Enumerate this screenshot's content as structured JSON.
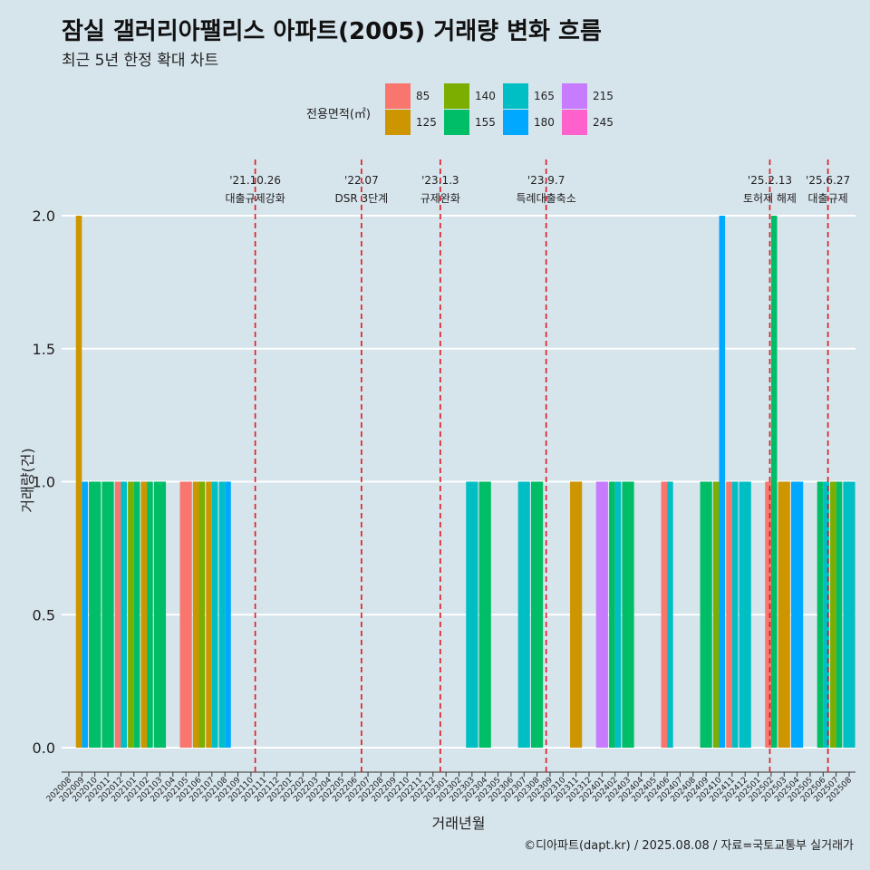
{
  "chart_data": {
    "type": "bar",
    "title": "잠실 갤러리아팰리스 아파트(2005) 거래량 변화 흐름",
    "subtitle": "최근 5년 한정 확대 차트",
    "xlabel": "거래년월",
    "ylabel": "거래량(건)",
    "ylim": [
      0,
      2
    ],
    "yticks": [
      "0.0",
      "0.5",
      "1.0",
      "1.5",
      "2.0"
    ],
    "caption": "©디아파트(dapt.kr) / 2025.08.08 / 자료=국토교통부 실거래가",
    "legend": {
      "title": "전용면적(㎡)",
      "placement": "top",
      "items": [
        {
          "label": "85",
          "color": "#f8766d"
        },
        {
          "label": "125",
          "color": "#cd9600"
        },
        {
          "label": "140",
          "color": "#7cae00"
        },
        {
          "label": "155",
          "color": "#00be67"
        },
        {
          "label": "165",
          "color": "#00bfc4"
        },
        {
          "label": "180",
          "color": "#00a9ff"
        },
        {
          "label": "215",
          "color": "#c77cff"
        },
        {
          "label": "245",
          "color": "#ff61cc"
        }
      ]
    },
    "categories": [
      "202008",
      "202009",
      "202010",
      "202011",
      "202012",
      "202101",
      "202102",
      "202103",
      "202104",
      "202105",
      "202106",
      "202107",
      "202108",
      "202109",
      "202110",
      "202111",
      "202112",
      "202201",
      "202202",
      "202203",
      "202204",
      "202205",
      "202206",
      "202207",
      "202208",
      "202209",
      "202210",
      "202211",
      "202212",
      "202301",
      "202302",
      "202303",
      "202304",
      "202305",
      "202306",
      "202307",
      "202308",
      "202309",
      "202310",
      "202311",
      "202312",
      "202401",
      "202402",
      "202403",
      "202404",
      "202405",
      "202406",
      "202407",
      "202408",
      "202409",
      "202410",
      "202411",
      "202412",
      "202501",
      "202502",
      "202503",
      "202504",
      "202505",
      "202506",
      "202507",
      "202508"
    ],
    "series": [
      {
        "name": "85",
        "values": {
          "202012": 1,
          "202105": 1,
          "202406": 1,
          "202411": 1,
          "202502": 1
        }
      },
      {
        "name": "125",
        "values": {
          "202009": 2,
          "202102": 1,
          "202106": 1,
          "202107": 1,
          "202311": 1,
          "202503": 1
        }
      },
      {
        "name": "140",
        "values": {
          "202101": 1,
          "202106": 1,
          "202410": 1,
          "202507": 1
        }
      },
      {
        "name": "155",
        "values": {
          "202010": 1,
          "202011": 1,
          "202101": 1,
          "202102": 1,
          "202103": 1,
          "202304": 1,
          "202308": 1,
          "202402": 1,
          "202403": 1,
          "202409": 1,
          "202502": 2,
          "202506": 1,
          "202507": 1
        }
      },
      {
        "name": "165",
        "values": {
          "202012": 1,
          "202107": 1,
          "202108": 1,
          "202303": 1,
          "202307": 1,
          "202402": 1,
          "202406": 1,
          "202411": 1,
          "202412": 1,
          "202506": 1,
          "202508": 1
        }
      },
      {
        "name": "180",
        "values": {
          "202009": 1,
          "202108": 1,
          "202410": 2,
          "202504": 1
        }
      },
      {
        "name": "215",
        "values": {
          "202401": 1
        }
      },
      {
        "name": "245",
        "values": {}
      }
    ],
    "annotations": [
      {
        "date": "'21.10.26",
        "text": "대출규제강화",
        "month": "202110",
        "offset": 0.83
      },
      {
        "date": "'22.07",
        "text": "DSR 3단계",
        "month": "202207",
        "offset": 0.0
      },
      {
        "date": "'23.1.3",
        "text": "규제완화",
        "month": "202301",
        "offset": 0.06
      },
      {
        "date": "'23.9.7",
        "text": "특례대출축소",
        "month": "202309",
        "offset": 0.2
      },
      {
        "date": "'25.2.13",
        "text": "토허제 해제",
        "month": "202502",
        "offset": 0.4
      },
      {
        "date": "'25.6.27",
        "text": "대출규제",
        "month": "202506",
        "offset": 0.87
      }
    ]
  }
}
